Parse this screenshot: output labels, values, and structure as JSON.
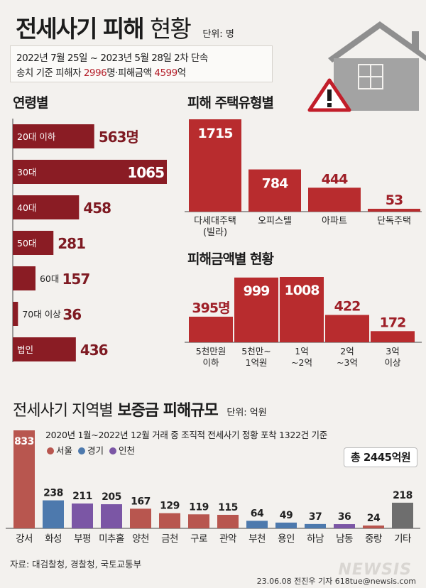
{
  "header": {
    "title_bold": "전세사기 피해",
    "title_light": "현황",
    "unit": "단위: 명",
    "period_line": "2022년 7월 25일 ~ 2023년 5월 28일 2차 단속",
    "summary_prefix": "송치 기준 피해자 ",
    "victims": "2996",
    "victims_unit": "명·피해금액 ",
    "amount": "4599",
    "amount_unit": "억"
  },
  "colors": {
    "dark_red": "#8a1c24",
    "red": "#b82c2e",
    "seoul": "#b8564f",
    "gyeonggi": "#4d79ad",
    "incheon": "#7b56a5",
    "other": "#6e6e6e"
  },
  "icons": {
    "house": "house-icon",
    "warning": "warning-icon"
  },
  "chart_data": [
    {
      "type": "bar",
      "orientation": "horizontal",
      "title": "연령별",
      "categories": [
        "20대 이하",
        "30대",
        "40대",
        "50대",
        "60대",
        "70대 이상",
        "법인"
      ],
      "values": [
        563,
        1065,
        458,
        281,
        157,
        36,
        436
      ],
      "value_labels": [
        "563명",
        "1065",
        "458",
        "281",
        "157",
        "36",
        "436"
      ]
    },
    {
      "type": "bar",
      "title": "피해 주택유형별",
      "categories": [
        "다세대주택\n(빌라)",
        "오피스텔",
        "아파트",
        "단독주택"
      ],
      "values": [
        1715,
        784,
        444,
        53
      ],
      "value_labels": [
        "1715",
        "784",
        "444",
        "53"
      ]
    },
    {
      "type": "bar",
      "title": "피해금액별 현황",
      "categories": [
        "5천만원\n이하",
        "5천만~\n1억원",
        "1억\n~2억",
        "2억\n~3억",
        "3억\n이상"
      ],
      "values": [
        395,
        999,
        1008,
        422,
        172
      ],
      "value_labels": [
        "395명",
        "999",
        "1008",
        "422",
        "172"
      ]
    },
    {
      "type": "bar",
      "title_light": "전세사기 지역별",
      "title_bold": "보증금 피해규모",
      "unit": "단위: 억원",
      "note": "2020년 1월~2022년 12월 거래 중 조직적 전세사기 정황 포착 1322건 기준",
      "legend": [
        {
          "name": "서울",
          "color": "#b8564f"
        },
        {
          "name": "경기",
          "color": "#4d79ad"
        },
        {
          "name": "인천",
          "color": "#7b56a5"
        }
      ],
      "total": "총 2445억원",
      "categories": [
        "강서",
        "화성",
        "부평",
        "미추홀",
        "양천",
        "금천",
        "구로",
        "관악",
        "부천",
        "용인",
        "하남",
        "남동",
        "중랑",
        "기타"
      ],
      "values": [
        833,
        238,
        211,
        205,
        167,
        129,
        119,
        115,
        64,
        49,
        37,
        36,
        24,
        218
      ],
      "groups": [
        "서울",
        "경기",
        "인천",
        "인천",
        "서울",
        "서울",
        "서울",
        "서울",
        "경기",
        "경기",
        "경기",
        "인천",
        "서울",
        "기타"
      ]
    }
  ],
  "footer": {
    "source": "자료: 대검찰청, 경찰청, 국토교통부",
    "credit": "23.06.08 전진우 기자 618tue@newsis.com",
    "watermark": "NEWSIS"
  }
}
